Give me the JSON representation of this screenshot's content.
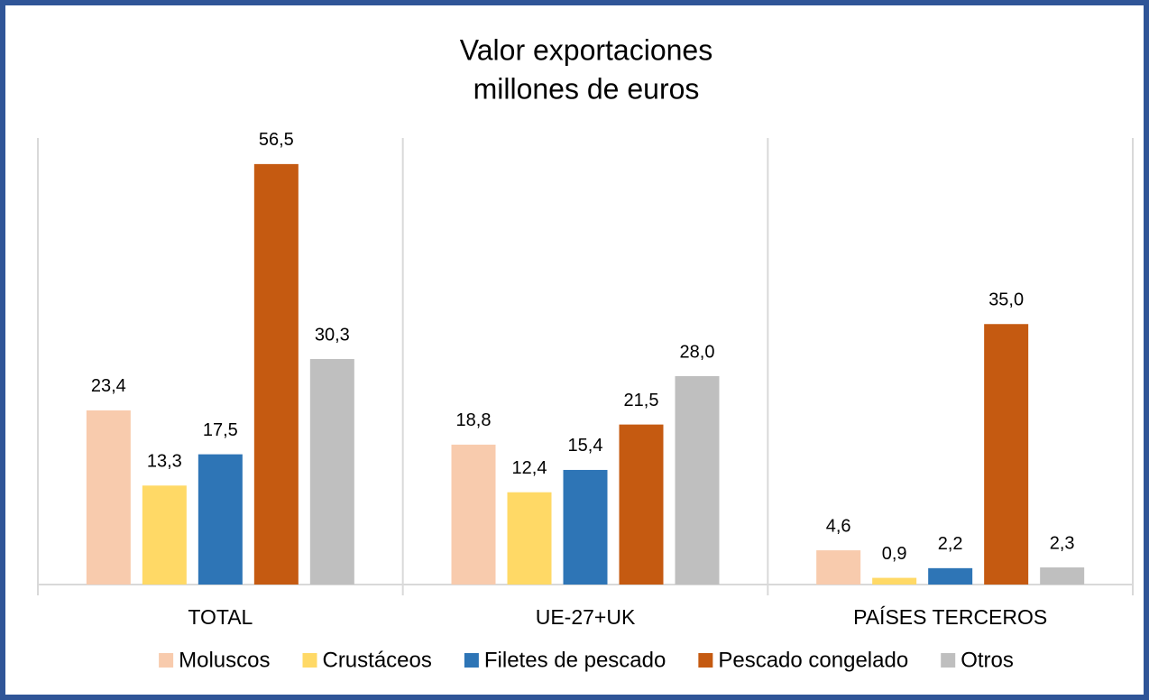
{
  "chart_data": {
    "type": "bar",
    "title": [
      "Valor exportaciones",
      "millones de euros"
    ],
    "categories": [
      "TOTAL",
      "UE-27+UK",
      "PAÍSES TERCEROS"
    ],
    "series": [
      {
        "name": "Moluscos",
        "color": "#f8cbad",
        "values": [
          23.4,
          18.8,
          4.6
        ],
        "value_labels": [
          "23,4",
          "18,8",
          "4,6"
        ]
      },
      {
        "name": "Crustáceos",
        "color": "#ffd966",
        "values": [
          13.3,
          12.4,
          0.9
        ],
        "value_labels": [
          "13,3",
          "12,4",
          "0,9"
        ]
      },
      {
        "name": "Filetes de pescado",
        "color": "#2e75b6",
        "values": [
          17.5,
          15.4,
          2.2
        ],
        "value_labels": [
          "17,5",
          "15,4",
          "2,2"
        ]
      },
      {
        "name": "Pescado congelado",
        "color": "#c55a11",
        "values": [
          56.5,
          21.5,
          35.0
        ],
        "value_labels": [
          "56,5",
          "21,5",
          "35,0"
        ]
      },
      {
        "name": "Otros",
        "color": "#bfbfbf",
        "values": [
          30.3,
          28.0,
          2.3
        ],
        "value_labels": [
          "30,3",
          "28,0",
          "2,3"
        ]
      }
    ],
    "ylim": [
      0,
      60
    ],
    "legend": "bottom"
  }
}
